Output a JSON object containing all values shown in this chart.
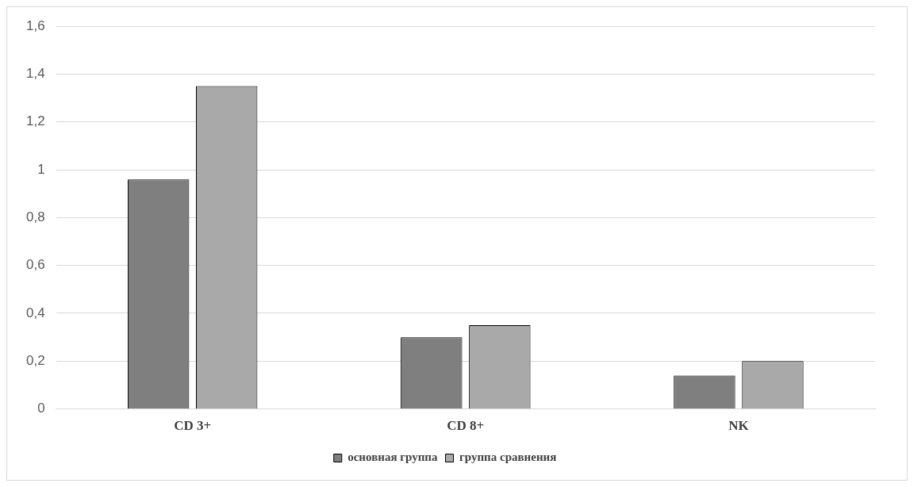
{
  "chart_data": {
    "type": "bar",
    "categories": [
      "CD 3+",
      "CD 8+",
      "NK"
    ],
    "series": [
      {
        "name": "основная группа",
        "color": "#7f7f7f",
        "values": [
          0.96,
          0.3,
          0.14
        ]
      },
      {
        "name": "группа сравнения",
        "color": "#a9a9a9",
        "values": [
          1.35,
          0.35,
          0.2
        ]
      }
    ],
    "ylim": [
      0,
      1.6
    ],
    "yticks": [
      {
        "value": 0,
        "label": "0"
      },
      {
        "value": 0.2,
        "label": "0,2"
      },
      {
        "value": 0.4,
        "label": "0,4"
      },
      {
        "value": 0.6,
        "label": "0,6"
      },
      {
        "value": 0.8,
        "label": "0,8"
      },
      {
        "value": 1,
        "label": "1"
      },
      {
        "value": 1.2,
        "label": "1,2"
      },
      {
        "value": 1.4,
        "label": "1,4"
      },
      {
        "value": 1.6,
        "label": "1,6"
      }
    ],
    "grid": "y",
    "legend": "bottom"
  }
}
